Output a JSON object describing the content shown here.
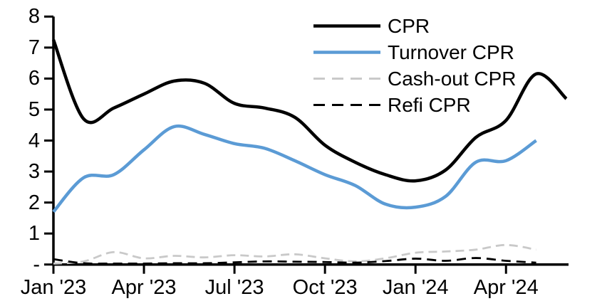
{
  "chart_data": {
    "type": "line",
    "title": "",
    "x_categories": [
      "Jan '23",
      "Feb '23",
      "Mar '23",
      "Apr '23",
      "May '23",
      "Jun '23",
      "Jul '23",
      "Aug '23",
      "Sep '23",
      "Oct '23",
      "Nov '23",
      "Dec '23",
      "Jan '24",
      "Feb '24",
      "Mar '24",
      "Apr '24",
      "May '24",
      "Jun '24"
    ],
    "x_tick_labels": [
      "Jan '23",
      "Apr '23",
      "Jul '23",
      "Oct '23",
      "Jan '24",
      "Apr '24"
    ],
    "x_tick_month_indices": [
      0,
      3,
      6,
      9,
      12,
      15
    ],
    "y_ticks": [
      {
        "value": 8,
        "label": "8"
      },
      {
        "value": 7,
        "label": "7"
      },
      {
        "value": 6,
        "label": "6"
      },
      {
        "value": 5,
        "label": "5"
      },
      {
        "value": 4,
        "label": "4"
      },
      {
        "value": 3,
        "label": "3"
      },
      {
        "value": 2,
        "label": "2"
      },
      {
        "value": 1,
        "label": "1"
      },
      {
        "value": 0,
        "label": "-"
      }
    ],
    "ylim": [
      0,
      8
    ],
    "grid": "off",
    "legend_position": "top-right",
    "axis_color": "#000000",
    "series": [
      {
        "name": "CPR",
        "color": "#000000",
        "style": "solid",
        "width": 4.5,
        "values": [
          7.25,
          4.7,
          5.05,
          5.5,
          5.92,
          5.85,
          5.2,
          5.05,
          4.75,
          3.85,
          3.3,
          2.9,
          2.7,
          3.05,
          4.1,
          4.65,
          6.15,
          5.35
        ]
      },
      {
        "name": "Turnover CPR",
        "color": "#5B9BD5",
        "style": "solid",
        "width": 4.5,
        "values": [
          1.7,
          2.8,
          2.9,
          3.7,
          4.45,
          4.2,
          3.9,
          3.75,
          3.35,
          2.9,
          2.55,
          1.95,
          1.85,
          2.2,
          3.3,
          3.35,
          4.0
        ]
      },
      {
        "name": "Cash-out CPR",
        "color": "#C9C9C9",
        "style": "dashed",
        "width": 2.8,
        "values": [
          0.03,
          0.1,
          0.4,
          0.2,
          0.28,
          0.23,
          0.3,
          0.26,
          0.33,
          0.2,
          0.1,
          0.2,
          0.38,
          0.42,
          0.48,
          0.63,
          0.48
        ]
      },
      {
        "name": "Refi CPR",
        "color": "#000000",
        "style": "dashed",
        "width": 2.8,
        "values": [
          0.17,
          0.04,
          0.03,
          0.03,
          0.04,
          0.04,
          0.07,
          0.1,
          0.09,
          0.08,
          0.06,
          0.11,
          0.19,
          0.12,
          0.21,
          0.12,
          0.06
        ]
      }
    ]
  }
}
